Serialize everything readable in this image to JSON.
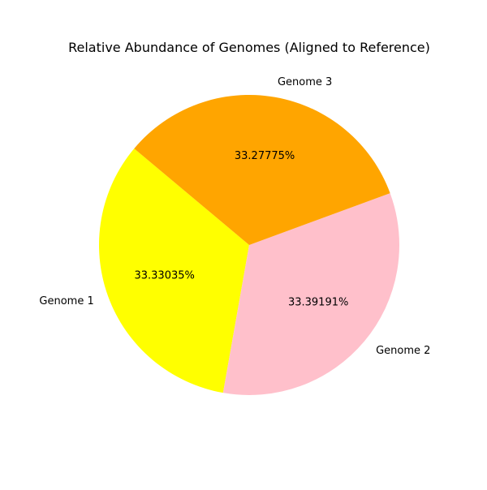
{
  "chart_data": {
    "type": "pie",
    "title": "Relative Abundance of Genomes (Aligned to Reference)",
    "labels": [
      "Genome 1",
      "Genome 2",
      "Genome 3"
    ],
    "values": [
      33.33035,
      33.39191,
      33.27775
    ],
    "percent_labels": [
      "33.33035%",
      "33.39191%",
      "33.27775%"
    ],
    "colors": [
      "#ffff00",
      "#ffc0cb",
      "#ffa500"
    ],
    "start_angle_deg": 140,
    "direction": "counterclockwise",
    "legend": "none"
  }
}
